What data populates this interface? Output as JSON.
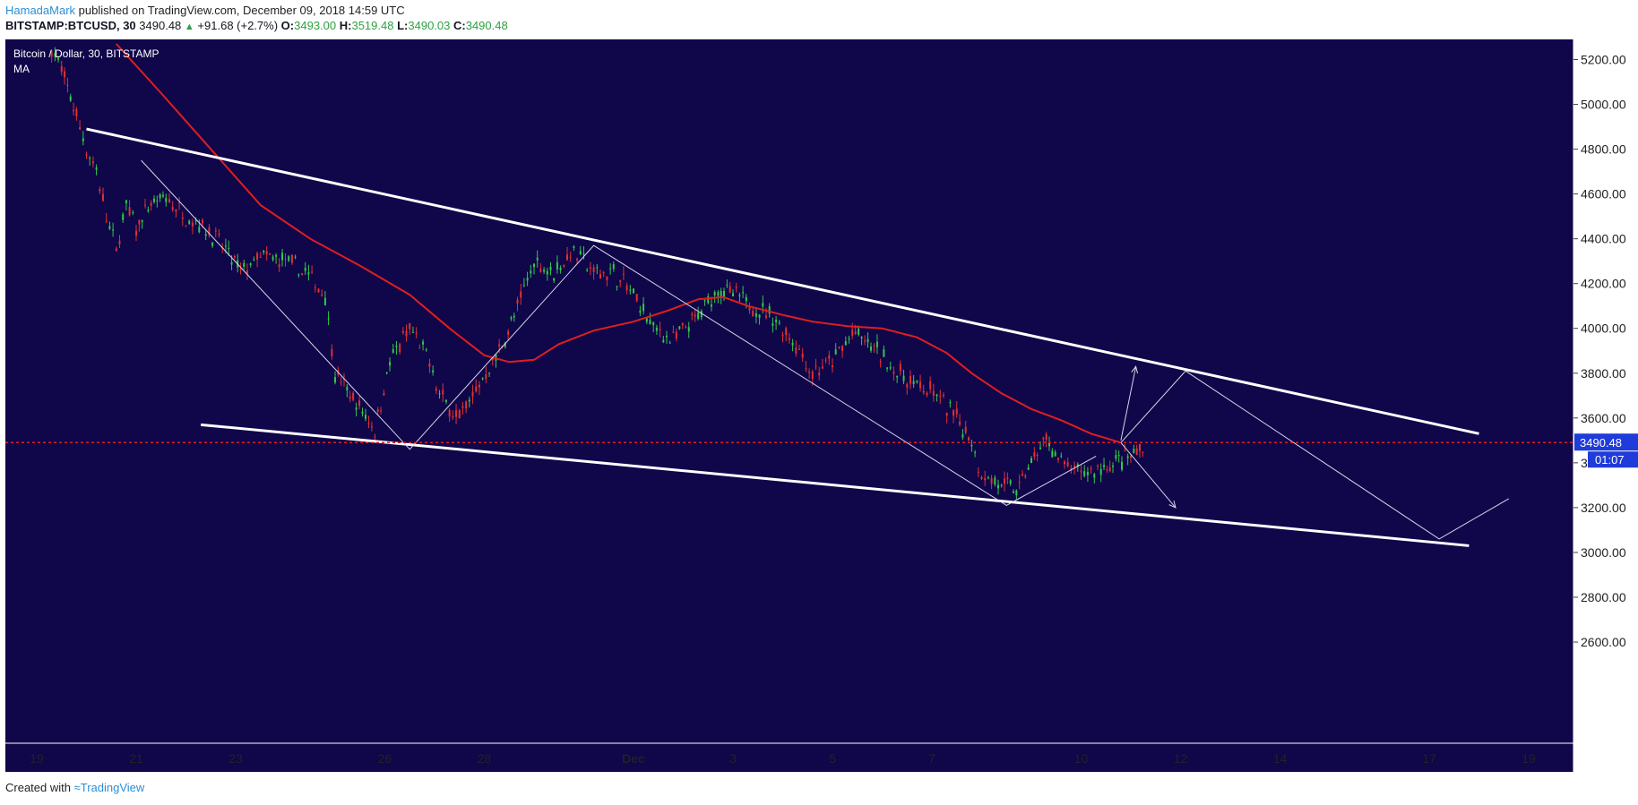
{
  "header": {
    "author": "HamadaMark",
    "published": "published on TradingView.com, December 09, 2018 14:59 UTC",
    "symbol": "BITSTAMP:BTCUSD, 30",
    "last": "3490.48",
    "change": "+91.68 (+2.7%)",
    "o_label": "O:",
    "o": "3493.00",
    "h_label": "H:",
    "h": "3519.48",
    "l_label": "L:",
    "l": "3490.03",
    "c_label": "C:",
    "c": "3490.48"
  },
  "footer": {
    "created": "Created with",
    "brand": "TradingView"
  },
  "colors": {
    "background": "#10064a",
    "ma": "#e01e1e",
    "trendline": "#ffffff",
    "price_line": "#e01e1e",
    "up_candle": "#30c94a",
    "down_candle": "#e03030",
    "price_tag": "#1f3bd9"
  },
  "chart_data": {
    "type": "candlestick",
    "title": "Bitcoin / Dollar, 30, BITSTAMP",
    "indicator": "MA",
    "ylim": [
      2600,
      5200
    ],
    "y_ticks": [
      "5200.00",
      "5000.00",
      "4800.00",
      "4600.00",
      "4400.00",
      "4200.00",
      "4000.00",
      "3800.00",
      "3600.00",
      "3400.00",
      "3200.00",
      "3000.00",
      "2800.00",
      "2600.00"
    ],
    "x_ticks": [
      "19",
      "21",
      "23",
      "26",
      "28",
      "Dec",
      "3",
      "5",
      "7",
      "10",
      "12",
      "14",
      "17",
      "19"
    ],
    "x_tick_days": [
      0,
      2,
      4,
      7,
      9,
      12,
      14,
      16,
      18,
      21,
      23,
      25,
      28,
      30
    ],
    "x_start": "Nov 19 2018",
    "current_price": "3490.48",
    "countdown": "01:07",
    "price_path": [
      [
        0.3,
        5250
      ],
      [
        0.5,
        5150
      ],
      [
        0.8,
        4950
      ],
      [
        1.0,
        4800
      ],
      [
        1.2,
        4700
      ],
      [
        1.4,
        4500
      ],
      [
        1.6,
        4350
      ],
      [
        1.8,
        4550
      ],
      [
        2.0,
        4450
      ],
      [
        2.3,
        4550
      ],
      [
        2.6,
        4580
      ],
      [
        3.0,
        4500
      ],
      [
        3.4,
        4450
      ],
      [
        3.8,
        4350
      ],
      [
        4.1,
        4250
      ],
      [
        4.5,
        4320
      ],
      [
        5.0,
        4300
      ],
      [
        5.4,
        4250
      ],
      [
        5.8,
        4150
      ],
      [
        6.0,
        3800
      ],
      [
        6.3,
        3700
      ],
      [
        6.8,
        3550
      ],
      [
        7.1,
        3850
      ],
      [
        7.5,
        4000
      ],
      [
        7.9,
        3850
      ],
      [
        8.1,
        3700
      ],
      [
        8.5,
        3600
      ],
      [
        8.9,
        3750
      ],
      [
        9.3,
        3900
      ],
      [
        9.6,
        4050
      ],
      [
        10.0,
        4300
      ],
      [
        10.4,
        4250
      ],
      [
        10.8,
        4350
      ],
      [
        11.2,
        4250
      ],
      [
        11.6,
        4250
      ],
      [
        12.0,
        4150
      ],
      [
        12.4,
        4000
      ],
      [
        12.8,
        3950
      ],
      [
        13.3,
        4050
      ],
      [
        13.7,
        4180
      ],
      [
        14.0,
        4150
      ],
      [
        14.4,
        4100
      ],
      [
        14.8,
        4050
      ],
      [
        15.2,
        3950
      ],
      [
        15.6,
        3800
      ],
      [
        16.0,
        3850
      ],
      [
        16.4,
        3980
      ],
      [
        16.9,
        3900
      ],
      [
        17.3,
        3800
      ],
      [
        17.7,
        3750
      ],
      [
        18.1,
        3700
      ],
      [
        18.5,
        3600
      ],
      [
        18.8,
        3500
      ],
      [
        19.0,
        3350
      ],
      [
        19.4,
        3300
      ],
      [
        19.7,
        3280
      ],
      [
        20.0,
        3400
      ],
      [
        20.3,
        3500
      ],
      [
        20.6,
        3400
      ],
      [
        21.0,
        3350
      ],
      [
        21.4,
        3370
      ],
      [
        21.7,
        3400
      ],
      [
        22.0,
        3420
      ],
      [
        22.3,
        3490
      ]
    ],
    "series": [
      {
        "name": "MA",
        "points": [
          [
            1.6,
            5270
          ],
          [
            2.5,
            5050
          ],
          [
            3.5,
            4800
          ],
          [
            4.5,
            4550
          ],
          [
            5.5,
            4400
          ],
          [
            6.5,
            4280
          ],
          [
            7.5,
            4150
          ],
          [
            8.3,
            4000
          ],
          [
            9.0,
            3880
          ],
          [
            9.5,
            3850
          ],
          [
            10.0,
            3860
          ],
          [
            10.5,
            3930
          ],
          [
            11.2,
            3990
          ],
          [
            12.0,
            4030
          ],
          [
            12.7,
            4080
          ],
          [
            13.3,
            4130
          ],
          [
            13.8,
            4140
          ],
          [
            14.3,
            4100
          ],
          [
            15.0,
            4060
          ],
          [
            15.6,
            4030
          ],
          [
            16.3,
            4010
          ],
          [
            17.0,
            4000
          ],
          [
            17.7,
            3960
          ],
          [
            18.3,
            3890
          ],
          [
            18.8,
            3800
          ],
          [
            19.4,
            3710
          ],
          [
            20.0,
            3640
          ],
          [
            20.6,
            3590
          ],
          [
            21.2,
            3530
          ],
          [
            21.8,
            3490
          ]
        ]
      }
    ],
    "trendlines": [
      {
        "name": "upper channel",
        "points": [
          [
            1.0,
            4890
          ],
          [
            29.0,
            3530
          ]
        ]
      },
      {
        "name": "lower channel",
        "points": [
          [
            3.3,
            3570
          ],
          [
            28.8,
            3030
          ]
        ]
      }
    ],
    "projection": [
      {
        "name": "past swings",
        "points": [
          [
            2.1,
            4750
          ],
          [
            7.5,
            3460
          ],
          [
            11.2,
            4370
          ],
          [
            19.5,
            3210
          ],
          [
            21.3,
            3430
          ]
        ]
      },
      {
        "name": "bullish path",
        "points": [
          [
            21.8,
            3490
          ],
          [
            23.1,
            3810
          ],
          [
            28.2,
            3060
          ],
          [
            29.6,
            3240
          ]
        ]
      },
      {
        "name": "breakout arrow",
        "points": [
          [
            21.8,
            3500
          ],
          [
            22.1,
            3830
          ]
        ]
      },
      {
        "name": "breakdown arrow",
        "points": [
          [
            21.8,
            3490
          ],
          [
            22.9,
            3200
          ]
        ]
      }
    ]
  }
}
